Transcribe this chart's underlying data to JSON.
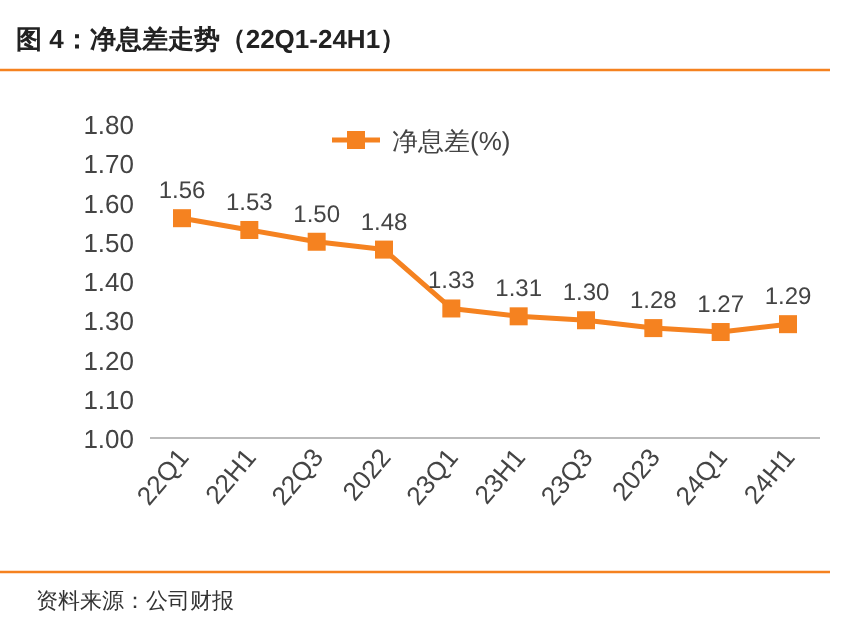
{
  "chart_data": {
    "type": "line",
    "title": "图 4：净息差走势（22Q1-24H1）",
    "annotations": [
      "资料来源：公司财报"
    ],
    "categories": [
      "22Q1",
      "22H1",
      "22Q3",
      "2022",
      "23Q1",
      "23H1",
      "23Q3",
      "2023",
      "24Q1",
      "24H1"
    ],
    "series": [
      {
        "name": "净息差(%)",
        "color": "#f58220",
        "values": [
          1.56,
          1.53,
          1.5,
          1.48,
          1.33,
          1.31,
          1.3,
          1.28,
          1.27,
          1.29
        ],
        "value_labels": [
          "1.56",
          "1.53",
          "1.50",
          "1.48",
          "1.33",
          "1.31",
          "1.30",
          "1.28",
          "1.27",
          "1.29"
        ]
      }
    ],
    "ylim": [
      1.0,
      1.8
    ],
    "yticks": [
      {
        "value": 1.0,
        "label": "1.00"
      },
      {
        "value": 1.1,
        "label": "1.10"
      },
      {
        "value": 1.2,
        "label": "1.20"
      },
      {
        "value": 1.3,
        "label": "1.30"
      },
      {
        "value": 1.4,
        "label": "1.40"
      },
      {
        "value": 1.5,
        "label": "1.50"
      },
      {
        "value": 1.6,
        "label": "1.60"
      },
      {
        "value": 1.7,
        "label": "1.70"
      },
      {
        "value": 1.8,
        "label": "1.80"
      }
    ],
    "legend": "top",
    "marker": "square",
    "line_style": "solid"
  }
}
